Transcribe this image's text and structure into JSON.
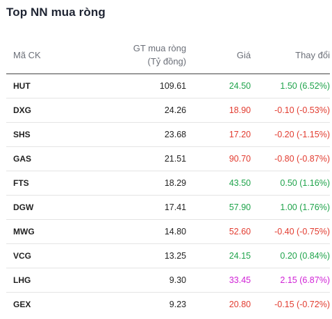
{
  "title": "Top NN mua ròng",
  "columns": {
    "code": "Mã CK",
    "value_line1": "GT mua ròng",
    "value_line2": "(Tỷ đồng)",
    "price": "Giá",
    "change": "Thay đổi"
  },
  "colors": {
    "up": "#1ea34a",
    "down": "#e23b2f",
    "ceiling": "#d021d6"
  },
  "rows": [
    {
      "code": "HUT",
      "value": "109.61",
      "price": "24.50",
      "change": "1.50 (6.52%)",
      "trend": "up"
    },
    {
      "code": "DXG",
      "value": "24.26",
      "price": "18.90",
      "change": "-0.10 (-0.53%)",
      "trend": "down"
    },
    {
      "code": "SHS",
      "value": "23.68",
      "price": "17.20",
      "change": "-0.20 (-1.15%)",
      "trend": "down"
    },
    {
      "code": "GAS",
      "value": "21.51",
      "price": "90.70",
      "change": "-0.80 (-0.87%)",
      "trend": "down"
    },
    {
      "code": "FTS",
      "value": "18.29",
      "price": "43.50",
      "change": "0.50 (1.16%)",
      "trend": "up"
    },
    {
      "code": "DGW",
      "value": "17.41",
      "price": "57.90",
      "change": "1.00 (1.76%)",
      "trend": "up"
    },
    {
      "code": "MWG",
      "value": "14.80",
      "price": "52.60",
      "change": "-0.40 (-0.75%)",
      "trend": "down"
    },
    {
      "code": "VCG",
      "value": "13.25",
      "price": "24.15",
      "change": "0.20 (0.84%)",
      "trend": "up"
    },
    {
      "code": "LHG",
      "value": "9.30",
      "price": "33.45",
      "change": "2.15 (6.87%)",
      "trend": "ceil"
    },
    {
      "code": "GEX",
      "value": "9.23",
      "price": "20.80",
      "change": "-0.15 (-0.72%)",
      "trend": "down"
    }
  ]
}
